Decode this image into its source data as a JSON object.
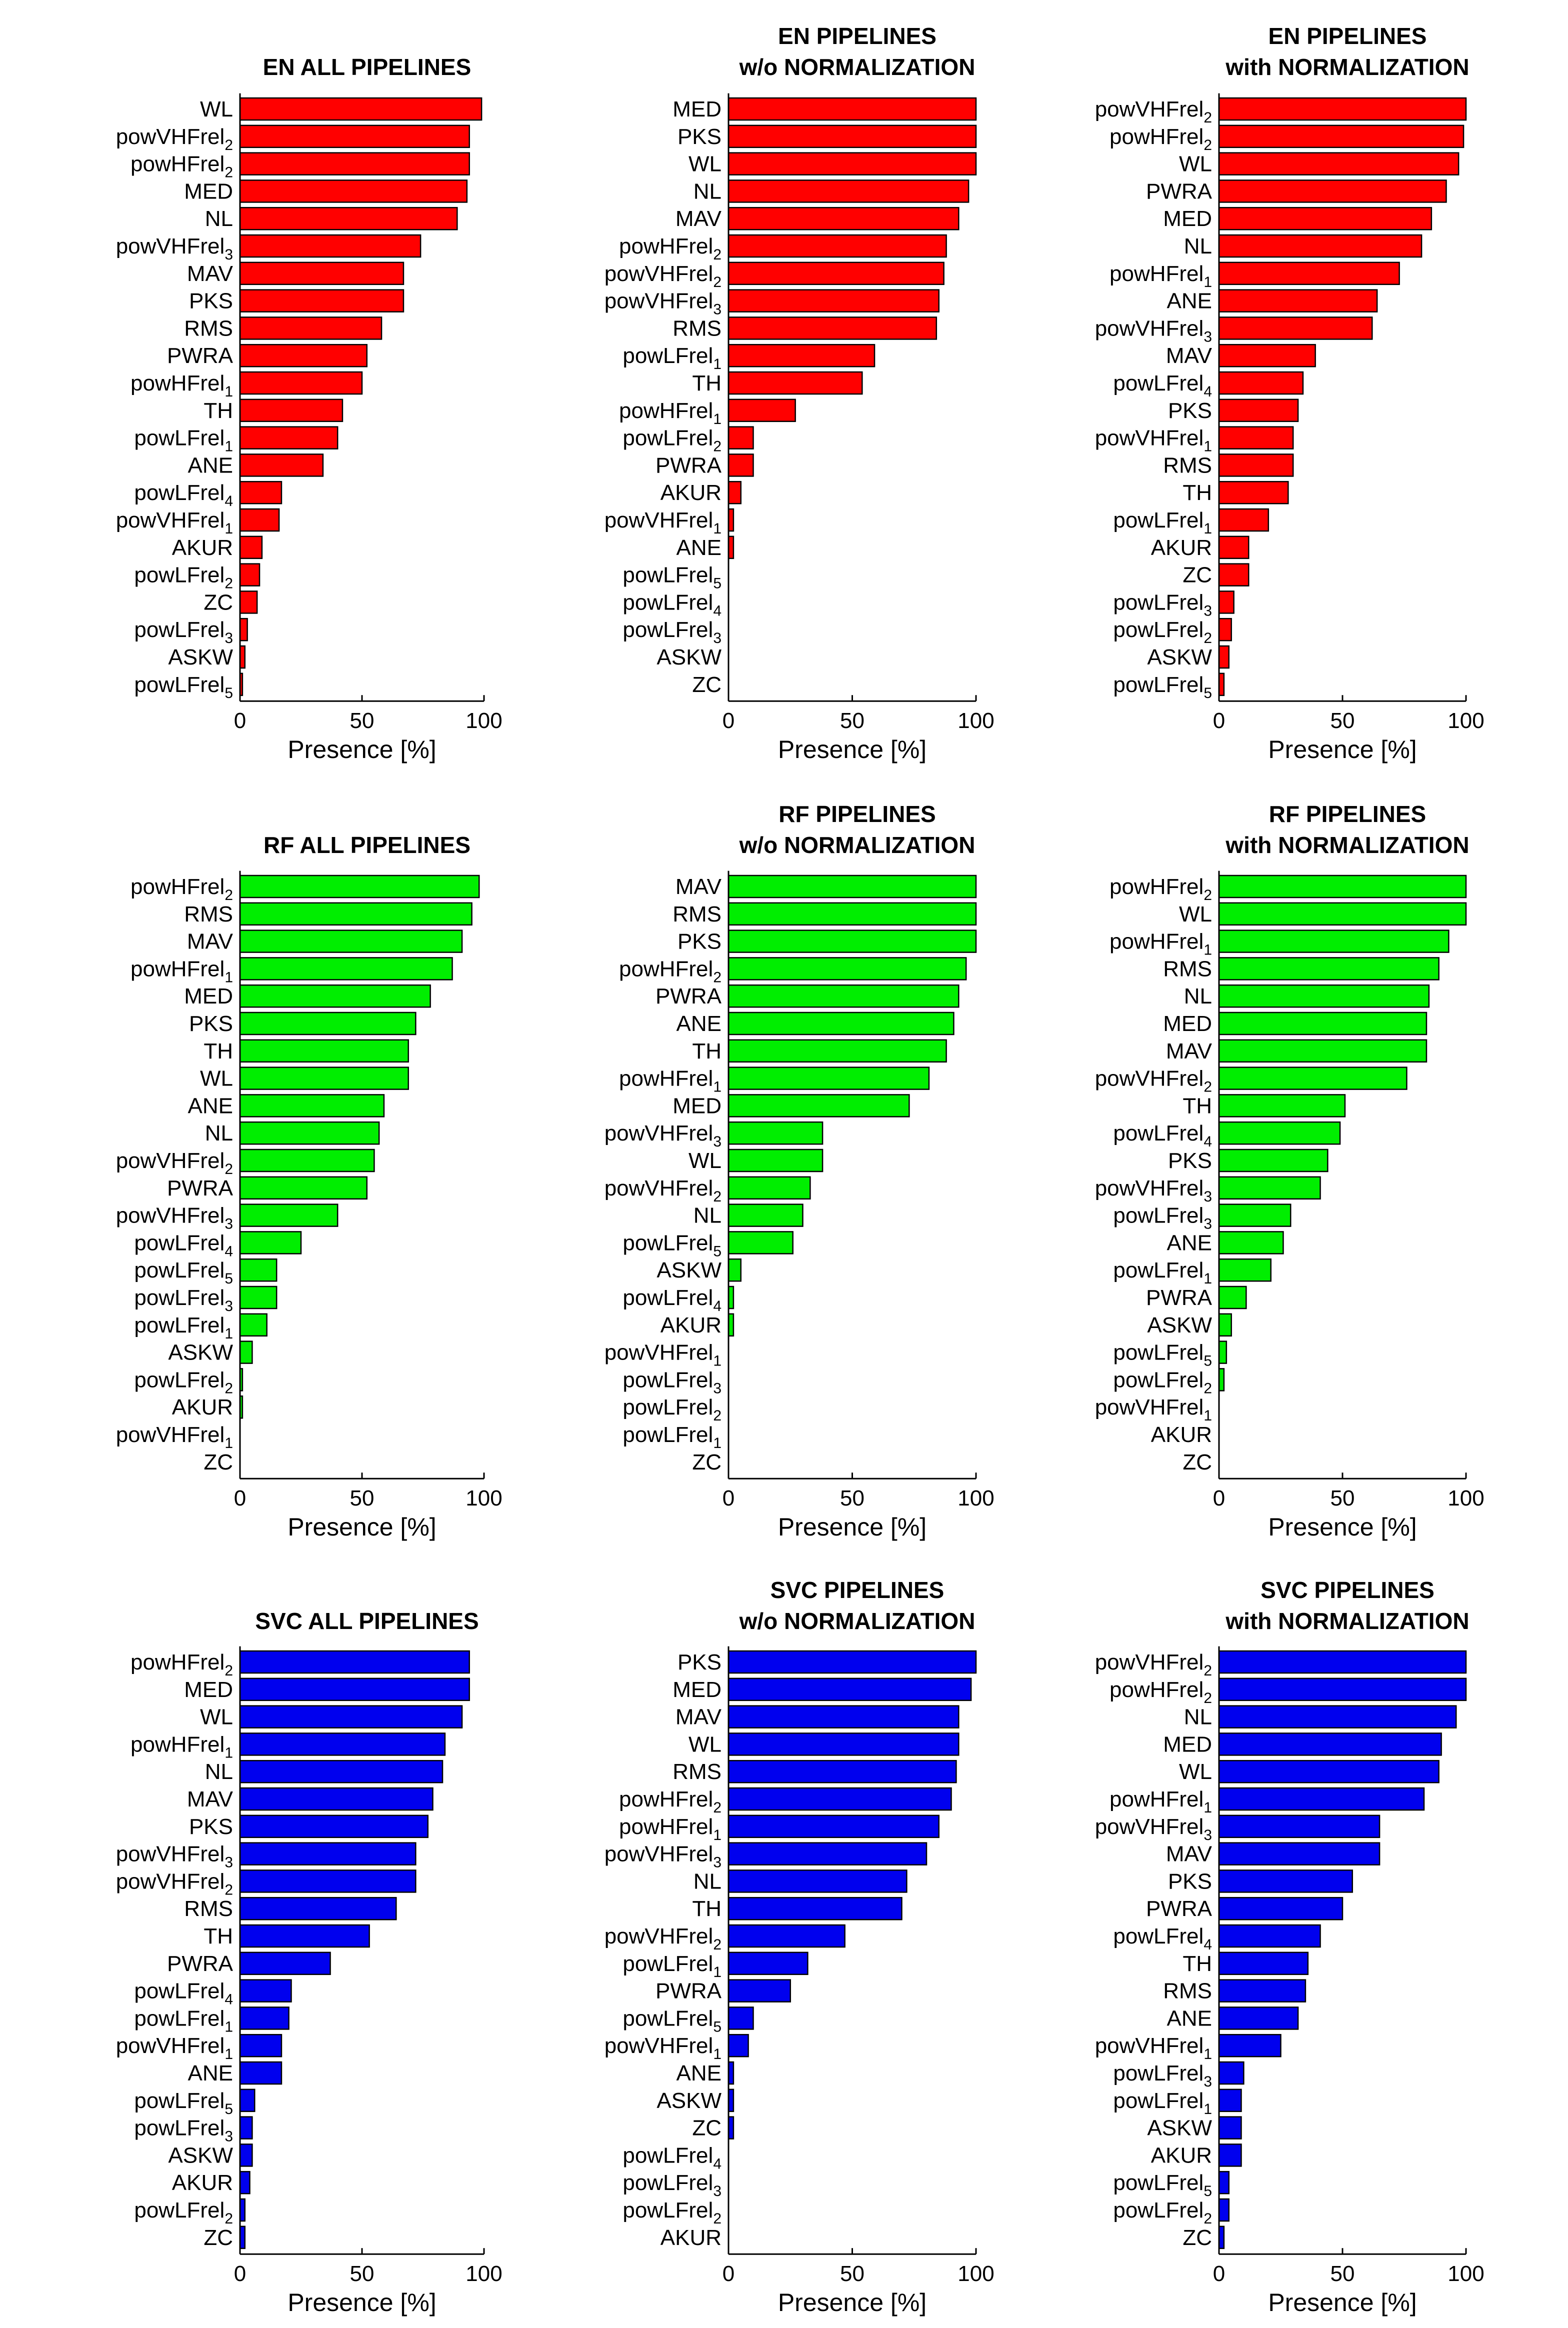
{
  "chart_data": [
    {
      "type": "bar",
      "orientation": "horizontal",
      "title": [
        "EN ALL PIPELINES"
      ],
      "xlabel": "Presence [%]",
      "xlim": [
        0,
        100
      ],
      "xticks": [
        0,
        50,
        100
      ],
      "color": "#ff0000",
      "categories": [
        [
          "WL"
        ],
        [
          "powVHFrel",
          "2"
        ],
        [
          "powHFrel",
          "2"
        ],
        [
          "MED"
        ],
        [
          "NL"
        ],
        [
          "powVHFrel",
          "3"
        ],
        [
          "MAV"
        ],
        [
          "PKS"
        ],
        [
          "RMS"
        ],
        [
          "PWRA"
        ],
        [
          "powHFrel",
          "1"
        ],
        [
          "TH"
        ],
        [
          "powLFrel",
          "1"
        ],
        [
          "ANE"
        ],
        [
          "powLFrel",
          "4"
        ],
        [
          "powVHFrel",
          "1"
        ],
        [
          "AKUR"
        ],
        [
          "powLFrel",
          "2"
        ],
        [
          "ZC"
        ],
        [
          "powLFrel",
          "3"
        ],
        [
          "ASKW"
        ],
        [
          "powLFrel",
          "5"
        ]
      ],
      "values": [
        99,
        94,
        94,
        93,
        89,
        74,
        67,
        67,
        58,
        52,
        50,
        42,
        40,
        34,
        17,
        16,
        9,
        8,
        7,
        3,
        2,
        1
      ]
    },
    {
      "type": "bar",
      "orientation": "horizontal",
      "title": [
        "EN PIPELINES",
        "w/o NORMALIZATION"
      ],
      "xlabel": "Presence [%]",
      "xlim": [
        0,
        100
      ],
      "xticks": [
        0,
        50,
        100
      ],
      "color": "#ff0000",
      "categories": [
        [
          "MED"
        ],
        [
          "PKS"
        ],
        [
          "WL"
        ],
        [
          "NL"
        ],
        [
          "MAV"
        ],
        [
          "powHFrel",
          "2"
        ],
        [
          "powVHFrel",
          "2"
        ],
        [
          "powVHFrel",
          "3"
        ],
        [
          "RMS"
        ],
        [
          "powLFrel",
          "1"
        ],
        [
          "TH"
        ],
        [
          "powHFrel",
          "1"
        ],
        [
          "powLFrel",
          "2"
        ],
        [
          "PWRA"
        ],
        [
          "AKUR"
        ],
        [
          "powVHFrel",
          "1"
        ],
        [
          "ANE"
        ],
        [
          "powLFrel",
          "5"
        ],
        [
          "powLFrel",
          "4"
        ],
        [
          "powLFrel",
          "3"
        ],
        [
          "ASKW"
        ],
        [
          "ZC"
        ]
      ],
      "values": [
        100,
        100,
        100,
        97,
        93,
        88,
        87,
        85,
        84,
        59,
        54,
        27,
        10,
        10,
        5,
        2,
        2,
        0,
        0,
        0,
        0,
        0
      ]
    },
    {
      "type": "bar",
      "orientation": "horizontal",
      "title": [
        "EN PIPELINES",
        "with NORMALIZATION"
      ],
      "xlabel": "Presence [%]",
      "xlim": [
        0,
        100
      ],
      "xticks": [
        0,
        50,
        100
      ],
      "color": "#ff0000",
      "categories": [
        [
          "powVHFrel",
          "2"
        ],
        [
          "powHFrel",
          "2"
        ],
        [
          "WL"
        ],
        [
          "PWRA"
        ],
        [
          "MED"
        ],
        [
          "NL"
        ],
        [
          "powHFrel",
          "1"
        ],
        [
          "ANE"
        ],
        [
          "powVHFrel",
          "3"
        ],
        [
          "MAV"
        ],
        [
          "powLFrel",
          "4"
        ],
        [
          "PKS"
        ],
        [
          "powVHFrel",
          "1"
        ],
        [
          "RMS"
        ],
        [
          "TH"
        ],
        [
          "powLFrel",
          "1"
        ],
        [
          "AKUR"
        ],
        [
          "ZC"
        ],
        [
          "powLFrel",
          "3"
        ],
        [
          "powLFrel",
          "2"
        ],
        [
          "ASKW"
        ],
        [
          "powLFrel",
          "5"
        ]
      ],
      "values": [
        100,
        99,
        97,
        92,
        86,
        82,
        73,
        64,
        62,
        39,
        34,
        32,
        30,
        30,
        28,
        20,
        12,
        12,
        6,
        5,
        4,
        2
      ]
    },
    {
      "type": "bar",
      "orientation": "horizontal",
      "title": [
        "RF ALL PIPELINES"
      ],
      "xlabel": "Presence [%]",
      "xlim": [
        0,
        100
      ],
      "xticks": [
        0,
        50,
        100
      ],
      "color": "#00ee00",
      "categories": [
        [
          "powHFrel",
          "2"
        ],
        [
          "RMS"
        ],
        [
          "MAV"
        ],
        [
          "powHFrel",
          "1"
        ],
        [
          "MED"
        ],
        [
          "PKS"
        ],
        [
          "TH"
        ],
        [
          "WL"
        ],
        [
          "ANE"
        ],
        [
          "NL"
        ],
        [
          "powVHFrel",
          "2"
        ],
        [
          "PWRA"
        ],
        [
          "powVHFrel",
          "3"
        ],
        [
          "powLFrel",
          "4"
        ],
        [
          "powLFrel",
          "5"
        ],
        [
          "powLFrel",
          "3"
        ],
        [
          "powLFrel",
          "1"
        ],
        [
          "ASKW"
        ],
        [
          "powLFrel",
          "2"
        ],
        [
          "AKUR"
        ],
        [
          "powVHFrel",
          "1"
        ],
        [
          "ZC"
        ]
      ],
      "values": [
        98,
        95,
        91,
        87,
        78,
        72,
        69,
        69,
        59,
        57,
        55,
        52,
        40,
        25,
        15,
        15,
        11,
        5,
        1,
        1,
        0,
        0
      ]
    },
    {
      "type": "bar",
      "orientation": "horizontal",
      "title": [
        "RF PIPELINES",
        "w/o NORMALIZATION"
      ],
      "xlabel": "Presence [%]",
      "xlim": [
        0,
        100
      ],
      "xticks": [
        0,
        50,
        100
      ],
      "color": "#00ee00",
      "categories": [
        [
          "MAV"
        ],
        [
          "RMS"
        ],
        [
          "PKS"
        ],
        [
          "powHFrel",
          "2"
        ],
        [
          "PWRA"
        ],
        [
          "ANE"
        ],
        [
          "TH"
        ],
        [
          "powHFrel",
          "1"
        ],
        [
          "MED"
        ],
        [
          "powVHFrel",
          "3"
        ],
        [
          "WL"
        ],
        [
          "powVHFrel",
          "2"
        ],
        [
          "NL"
        ],
        [
          "powLFrel",
          "5"
        ],
        [
          "ASKW"
        ],
        [
          "powLFrel",
          "4"
        ],
        [
          "AKUR"
        ],
        [
          "powVHFrel",
          "1"
        ],
        [
          "powLFrel",
          "3"
        ],
        [
          "powLFrel",
          "2"
        ],
        [
          "powLFrel",
          "1"
        ],
        [
          "ZC"
        ]
      ],
      "values": [
        100,
        100,
        100,
        96,
        93,
        91,
        88,
        81,
        73,
        38,
        38,
        33,
        30,
        26,
        5,
        2,
        2,
        0,
        0,
        0,
        0,
        0
      ]
    },
    {
      "type": "bar",
      "orientation": "horizontal",
      "title": [
        "RF PIPELINES",
        "with NORMALIZATION"
      ],
      "xlabel": "Presence [%]",
      "xlim": [
        0,
        100
      ],
      "xticks": [
        0,
        50,
        100
      ],
      "color": "#00ee00",
      "categories": [
        [
          "powHFrel",
          "2"
        ],
        [
          "WL"
        ],
        [
          "powHFrel",
          "1"
        ],
        [
          "RMS"
        ],
        [
          "NL"
        ],
        [
          "MED"
        ],
        [
          "MAV"
        ],
        [
          "powVHFrel",
          "2"
        ],
        [
          "TH"
        ],
        [
          "powLFrel",
          "4"
        ],
        [
          "PKS"
        ],
        [
          "powVHFrel",
          "3"
        ],
        [
          "powLFrel",
          "3"
        ],
        [
          "ANE"
        ],
        [
          "powLFrel",
          "1"
        ],
        [
          "PWRA"
        ],
        [
          "ASKW"
        ],
        [
          "powLFrel",
          "5"
        ],
        [
          "powLFrel",
          "2"
        ],
        [
          "powVHFrel",
          "1"
        ],
        [
          "AKUR"
        ],
        [
          "ZC"
        ]
      ],
      "values": [
        100,
        100,
        93,
        89,
        85,
        84,
        84,
        76,
        51,
        49,
        44,
        41,
        29,
        26,
        21,
        11,
        5,
        3,
        2,
        0,
        0,
        0
      ]
    },
    {
      "type": "bar",
      "orientation": "horizontal",
      "title": [
        "SVC ALL PIPELINES"
      ],
      "xlabel": "Presence [%]",
      "xlim": [
        0,
        100
      ],
      "xticks": [
        0,
        50,
        100
      ],
      "color": "#0000ee",
      "categories": [
        [
          "powHFrel",
          "2"
        ],
        [
          "MED"
        ],
        [
          "WL"
        ],
        [
          "powHFrel",
          "1"
        ],
        [
          "NL"
        ],
        [
          "MAV"
        ],
        [
          "PKS"
        ],
        [
          "powVHFrel",
          "3"
        ],
        [
          "powVHFrel",
          "2"
        ],
        [
          "RMS"
        ],
        [
          "TH"
        ],
        [
          "PWRA"
        ],
        [
          "powLFrel",
          "4"
        ],
        [
          "powLFrel",
          "1"
        ],
        [
          "powVHFrel",
          "1"
        ],
        [
          "ANE"
        ],
        [
          "powLFrel",
          "5"
        ],
        [
          "powLFrel",
          "3"
        ],
        [
          "ASKW"
        ],
        [
          "AKUR"
        ],
        [
          "powLFrel",
          "2"
        ],
        [
          "ZC"
        ]
      ],
      "values": [
        94,
        94,
        91,
        84,
        83,
        79,
        77,
        72,
        72,
        64,
        53,
        37,
        21,
        20,
        17,
        17,
        6,
        5,
        5,
        4,
        2,
        2
      ]
    },
    {
      "type": "bar",
      "orientation": "horizontal",
      "title": [
        "SVC PIPELINES",
        "w/o NORMALIZATION"
      ],
      "xlabel": "Presence [%]",
      "xlim": [
        0,
        100
      ],
      "xticks": [
        0,
        50,
        100
      ],
      "color": "#0000ee",
      "categories": [
        [
          "PKS"
        ],
        [
          "MED"
        ],
        [
          "MAV"
        ],
        [
          "WL"
        ],
        [
          "RMS"
        ],
        [
          "powHFrel",
          "2"
        ],
        [
          "powHFrel",
          "1"
        ],
        [
          "powVHFrel",
          "3"
        ],
        [
          "NL"
        ],
        [
          "TH"
        ],
        [
          "powVHFrel",
          "2"
        ],
        [
          "powLFrel",
          "1"
        ],
        [
          "PWRA"
        ],
        [
          "powLFrel",
          "5"
        ],
        [
          "powVHFrel",
          "1"
        ],
        [
          "ANE"
        ],
        [
          "ASKW"
        ],
        [
          "ZC"
        ],
        [
          "powLFrel",
          "4"
        ],
        [
          "powLFrel",
          "3"
        ],
        [
          "powLFrel",
          "2"
        ],
        [
          "AKUR"
        ]
      ],
      "values": [
        100,
        98,
        93,
        93,
        92,
        90,
        85,
        80,
        72,
        70,
        47,
        32,
        25,
        10,
        8,
        2,
        2,
        2,
        0,
        0,
        0,
        0
      ]
    },
    {
      "type": "bar",
      "orientation": "horizontal",
      "title": [
        "SVC PIPELINES",
        "with NORMALIZATION"
      ],
      "xlabel": "Presence [%]",
      "xlim": [
        0,
        100
      ],
      "xticks": [
        0,
        50,
        100
      ],
      "color": "#0000ee",
      "categories": [
        [
          "powVHFrel",
          "2"
        ],
        [
          "powHFrel",
          "2"
        ],
        [
          "NL"
        ],
        [
          "MED"
        ],
        [
          "WL"
        ],
        [
          "powHFrel",
          "1"
        ],
        [
          "powVHFrel",
          "3"
        ],
        [
          "MAV"
        ],
        [
          "PKS"
        ],
        [
          "PWRA"
        ],
        [
          "powLFrel",
          "4"
        ],
        [
          "TH"
        ],
        [
          "RMS"
        ],
        [
          "ANE"
        ],
        [
          "powVHFrel",
          "1"
        ],
        [
          "powLFrel",
          "3"
        ],
        [
          "powLFrel",
          "1"
        ],
        [
          "ASKW"
        ],
        [
          "AKUR"
        ],
        [
          "powLFrel",
          "5"
        ],
        [
          "powLFrel",
          "2"
        ],
        [
          "ZC"
        ]
      ],
      "values": [
        100,
        100,
        96,
        90,
        89,
        83,
        65,
        65,
        54,
        50,
        41,
        36,
        35,
        32,
        25,
        10,
        9,
        9,
        9,
        4,
        4,
        2
      ]
    }
  ]
}
